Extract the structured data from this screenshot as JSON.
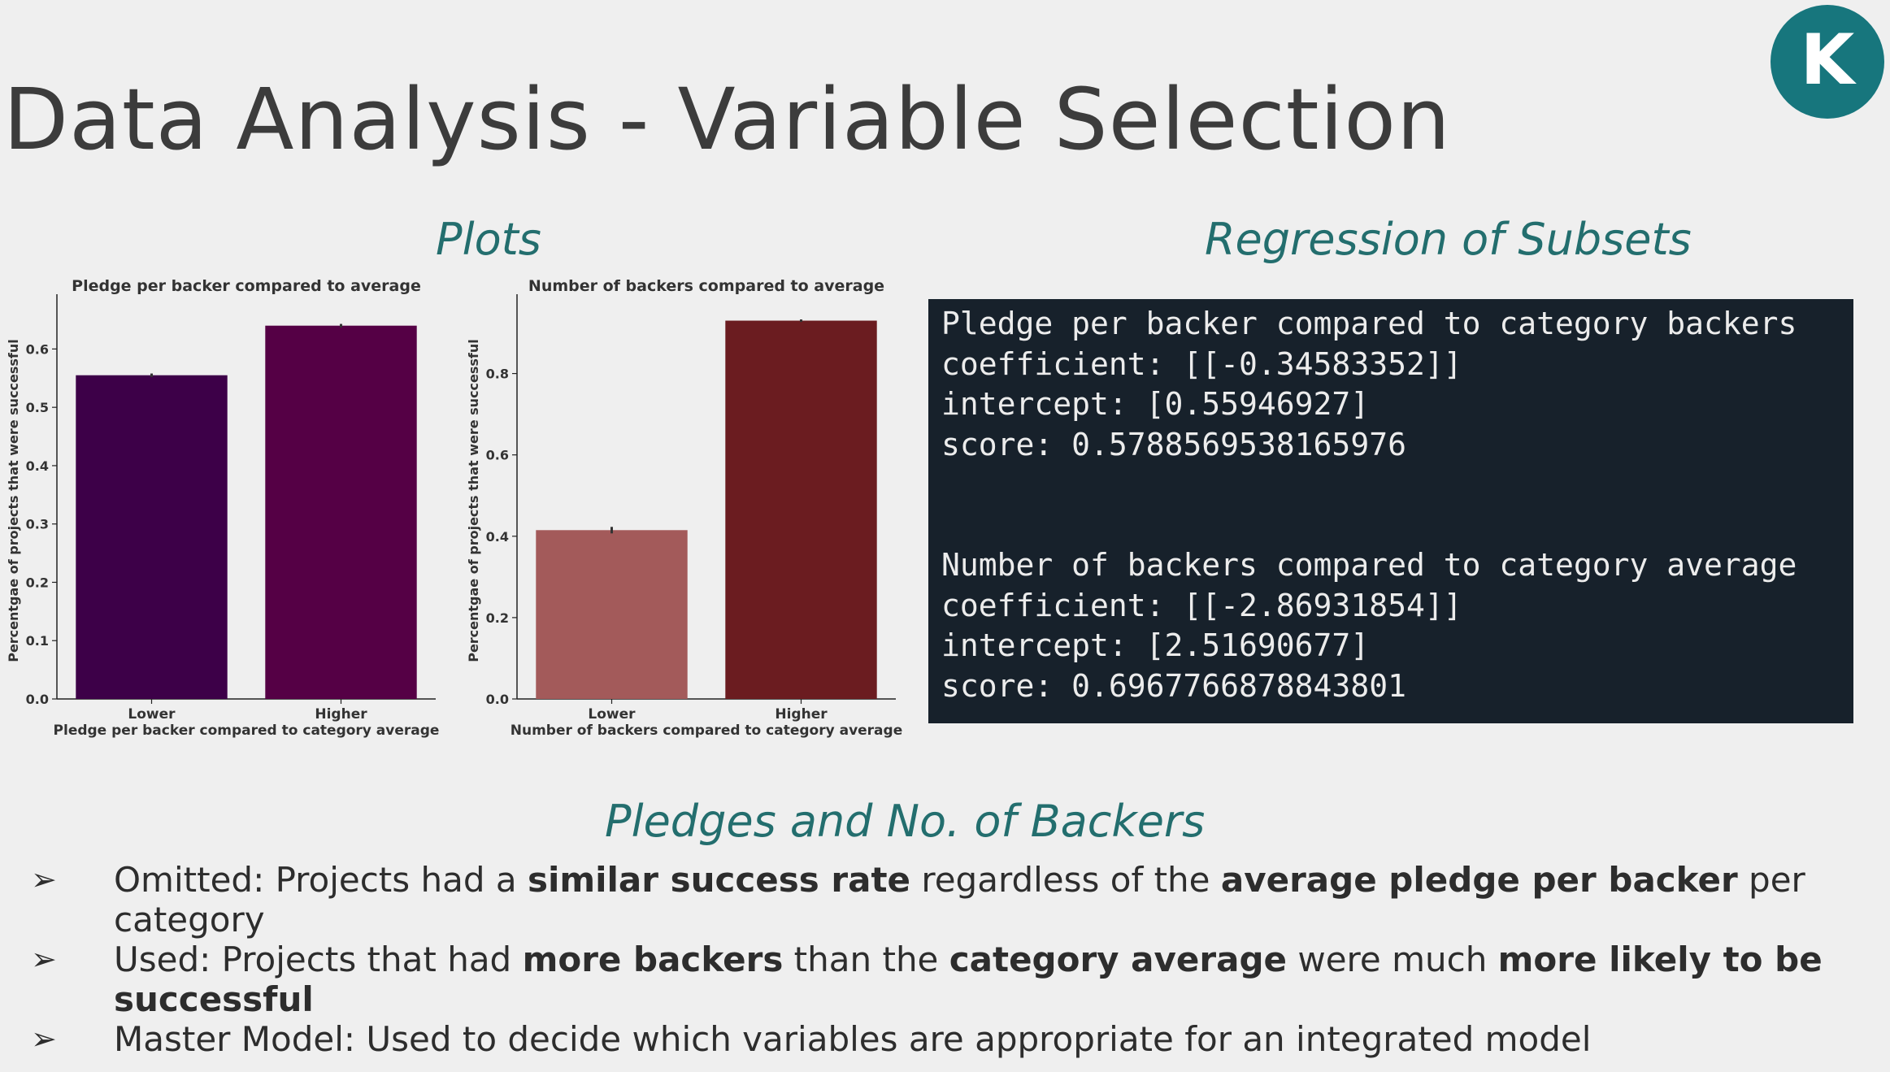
{
  "logo": {
    "letter": "K",
    "color": "#17767d"
  },
  "title": "Data Analysis - Variable Selection",
  "sections": {
    "plots": "Plots",
    "regression": "Regression of Subsets",
    "pledges": "Pledges and No. of Backers"
  },
  "chart_data": [
    {
      "type": "bar",
      "title": "Pledge per backer compared to average",
      "xlabel": "Pledge per backer compared to category average",
      "ylabel": "Percentgae of projects that were successful",
      "categories": [
        "Lower",
        "Higher"
      ],
      "values": [
        0.555,
        0.64
      ],
      "error": [
        0.003,
        0.003
      ],
      "colors": [
        "#3d0048",
        "#550045"
      ],
      "ylim": [
        0,
        0.68
      ],
      "yticks": [
        0.0,
        0.1,
        0.2,
        0.3,
        0.4,
        0.5,
        0.6
      ],
      "ytick_labels": [
        "0.0",
        "0.1",
        "0.2",
        "0.3",
        "0.4",
        "0.5",
        "0.6"
      ],
      "grid": false
    },
    {
      "type": "bar",
      "title": "Number of backers compared to average",
      "xlabel": "Number of backers compared to category average",
      "ylabel": "Percentgae of projects that were successful",
      "categories": [
        "Lower",
        "Higher"
      ],
      "values": [
        0.415,
        0.93
      ],
      "error": [
        0.008,
        0.003
      ],
      "colors": [
        "#a35a5a",
        "#6b1c20"
      ],
      "ylim": [
        0,
        0.975
      ],
      "yticks": [
        0.0,
        0.2,
        0.4,
        0.6,
        0.8
      ],
      "ytick_labels": [
        "0.0",
        "0.2",
        "0.4",
        "0.6",
        "0.8"
      ],
      "grid": false
    }
  ],
  "console": {
    "lines": [
      "Pledge per backer compared to category backers",
      "coefficient: [[-0.34583352]]",
      "intercept: [0.55946927]",
      "score: 0.5788569538165976",
      "",
      "",
      "Number of backers compared to category average",
      "coefficient: [[-2.86931854]]",
      "intercept: [2.51690677]",
      "score: 0.6967766878843801"
    ]
  },
  "bullets": [
    {
      "arrow": "➢",
      "parts": [
        {
          "text": "Omitted: Projects had a ",
          "bold": false
        },
        {
          "text": "similar success rate",
          "bold": true
        },
        {
          "text": " regardless of the ",
          "bold": false
        },
        {
          "text": "average pledge per backer",
          "bold": true
        },
        {
          "text": " per category",
          "bold": false
        }
      ]
    },
    {
      "arrow": "➢",
      "parts": [
        {
          "text": "Used: Projects that had ",
          "bold": false
        },
        {
          "text": "more backers",
          "bold": true
        },
        {
          "text": " than the ",
          "bold": false
        },
        {
          "text": "category average",
          "bold": true
        },
        {
          "text": " were much ",
          "bold": false
        },
        {
          "text": "more likely to be successful",
          "bold": true
        }
      ]
    },
    {
      "arrow": "➢",
      "parts": [
        {
          "text": "Master Model: Used to decide which variables are appropriate for an integrated model",
          "bold": false
        }
      ]
    }
  ]
}
